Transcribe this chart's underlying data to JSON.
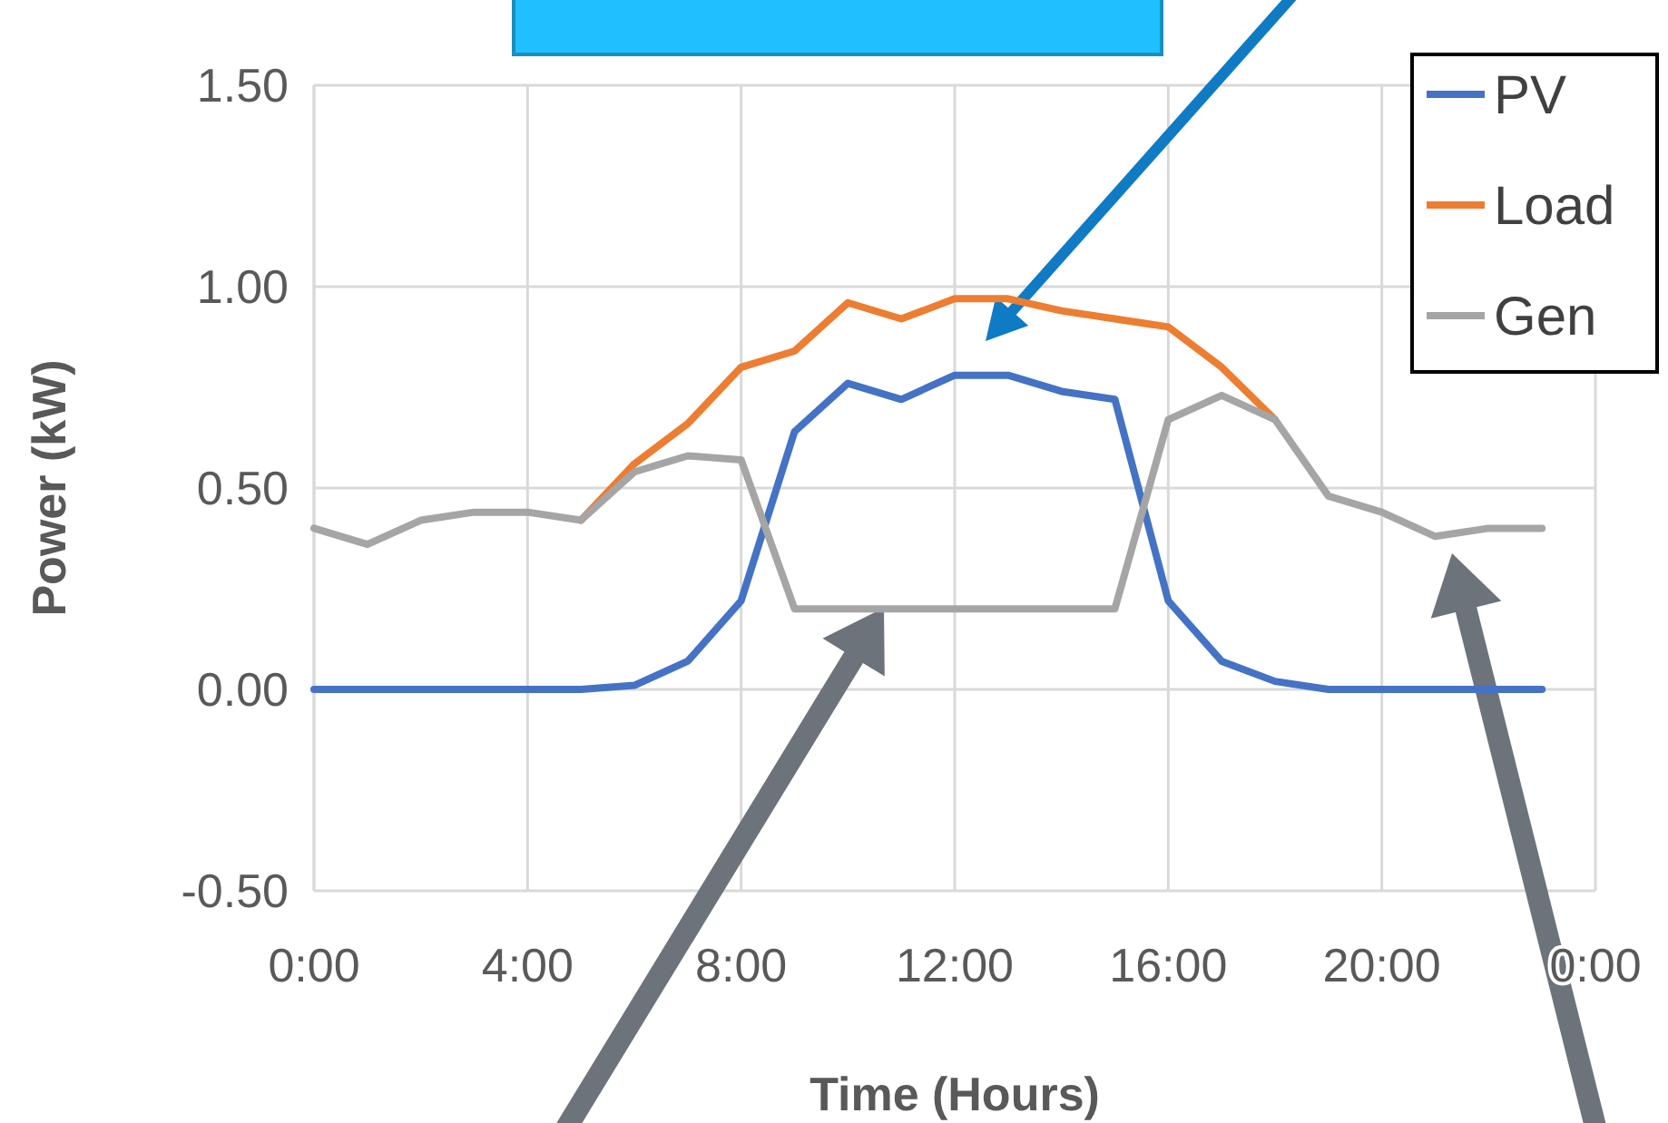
{
  "chart_data": {
    "type": "line",
    "xlabel": "Time (Hours)",
    "ylabel": "Power (kW)",
    "x": [
      0,
      1,
      2,
      3,
      4,
      5,
      6,
      7,
      8,
      9,
      10,
      11,
      12,
      13,
      14,
      15,
      16,
      17,
      18,
      19,
      20,
      21,
      22,
      23
    ],
    "xlim": [
      0,
      24
    ],
    "xticks": [
      {
        "value": 0,
        "label": "0:00"
      },
      {
        "value": 4,
        "label": "4:00"
      },
      {
        "value": 8,
        "label": "8:00"
      },
      {
        "value": 12,
        "label": "12:00"
      },
      {
        "value": 16,
        "label": "16:00"
      },
      {
        "value": 20,
        "label": "20:00"
      },
      {
        "value": 24,
        "label": "0:00"
      }
    ],
    "ylim": [
      -0.5,
      1.5
    ],
    "yticks": [
      {
        "value": -0.5,
        "label": "-0.50"
      },
      {
        "value": 0,
        "label": "0.00"
      },
      {
        "value": 0.5,
        "label": "0.50"
      },
      {
        "value": 1,
        "label": "1.00"
      },
      {
        "value": 1.5,
        "label": "1.50"
      }
    ],
    "grid": true,
    "legend": "top right",
    "marker": "none",
    "line_style": "solid",
    "series": [
      {
        "name": "PV",
        "color": "#4472c4",
        "values": [
          0,
          0,
          0,
          0,
          0,
          0,
          0.01,
          0.07,
          0.22,
          0.64,
          0.76,
          0.72,
          0.78,
          0.78,
          0.74,
          0.72,
          0.22,
          0.07,
          0.02,
          0,
          0,
          0,
          0,
          0
        ]
      },
      {
        "name": "Load",
        "color": "#ed7d31",
        "values": [
          null,
          null,
          null,
          null,
          null,
          0.42,
          0.56,
          0.66,
          0.8,
          0.84,
          0.96,
          0.92,
          0.97,
          0.97,
          0.94,
          0.92,
          0.9,
          0.8,
          0.67,
          null,
          null,
          null,
          null,
          null
        ]
      },
      {
        "name": "Gen",
        "color": "#a5a5a5",
        "values": [
          0.4,
          0.36,
          0.42,
          0.44,
          0.44,
          0.42,
          0.54,
          0.58,
          0.57,
          0.2,
          0.2,
          0.2,
          0.2,
          0.2,
          0.2,
          0.2,
          0.67,
          0.73,
          0.67,
          0.48,
          0.44,
          0.38,
          0.4,
          0.4
        ]
      }
    ]
  }
}
